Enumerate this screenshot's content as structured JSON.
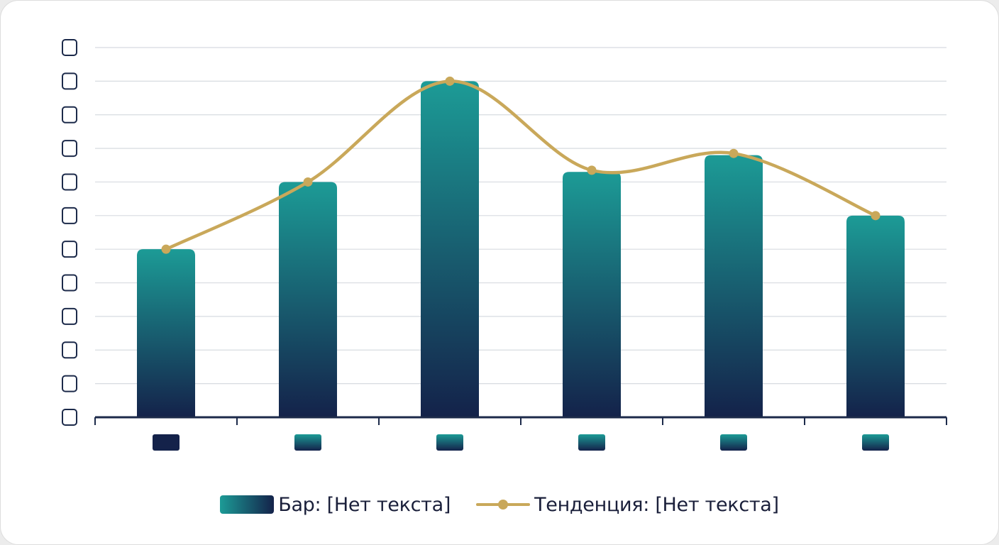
{
  "colors": {
    "bar_top": "#1c9b96",
    "bar_bottom": "#14224a",
    "trend": "#c9a85a",
    "axis": "#1c2a4a",
    "grid": "#d7dbe0"
  },
  "chart_data": {
    "type": "bar",
    "categories": [
      "",
      "",
      "",
      "",
      "",
      ""
    ],
    "category_labels_shown": false,
    "y_tick_labels_shown": false,
    "y_ticks": [
      0,
      1,
      2,
      3,
      4,
      5,
      6,
      7,
      8,
      9,
      10,
      11
    ],
    "ylim": [
      0,
      11
    ],
    "grid": true,
    "legend_position": "bottom-center",
    "series": [
      {
        "name": "Бар: [Нет текста]",
        "type": "bar",
        "values": [
          5,
          7,
          10,
          7.3,
          7.8,
          6
        ]
      },
      {
        "name": "Тенденция: [Нет текста]",
        "type": "line",
        "smooth": true,
        "markers": true,
        "values": [
          5,
          7,
          10,
          7.35,
          7.85,
          6
        ]
      }
    ],
    "title": "",
    "xlabel": "",
    "ylabel": ""
  },
  "legend": {
    "bar_label": "Бар: [Нет текста]",
    "trend_label": "Тенденция: [Нет текста]"
  }
}
